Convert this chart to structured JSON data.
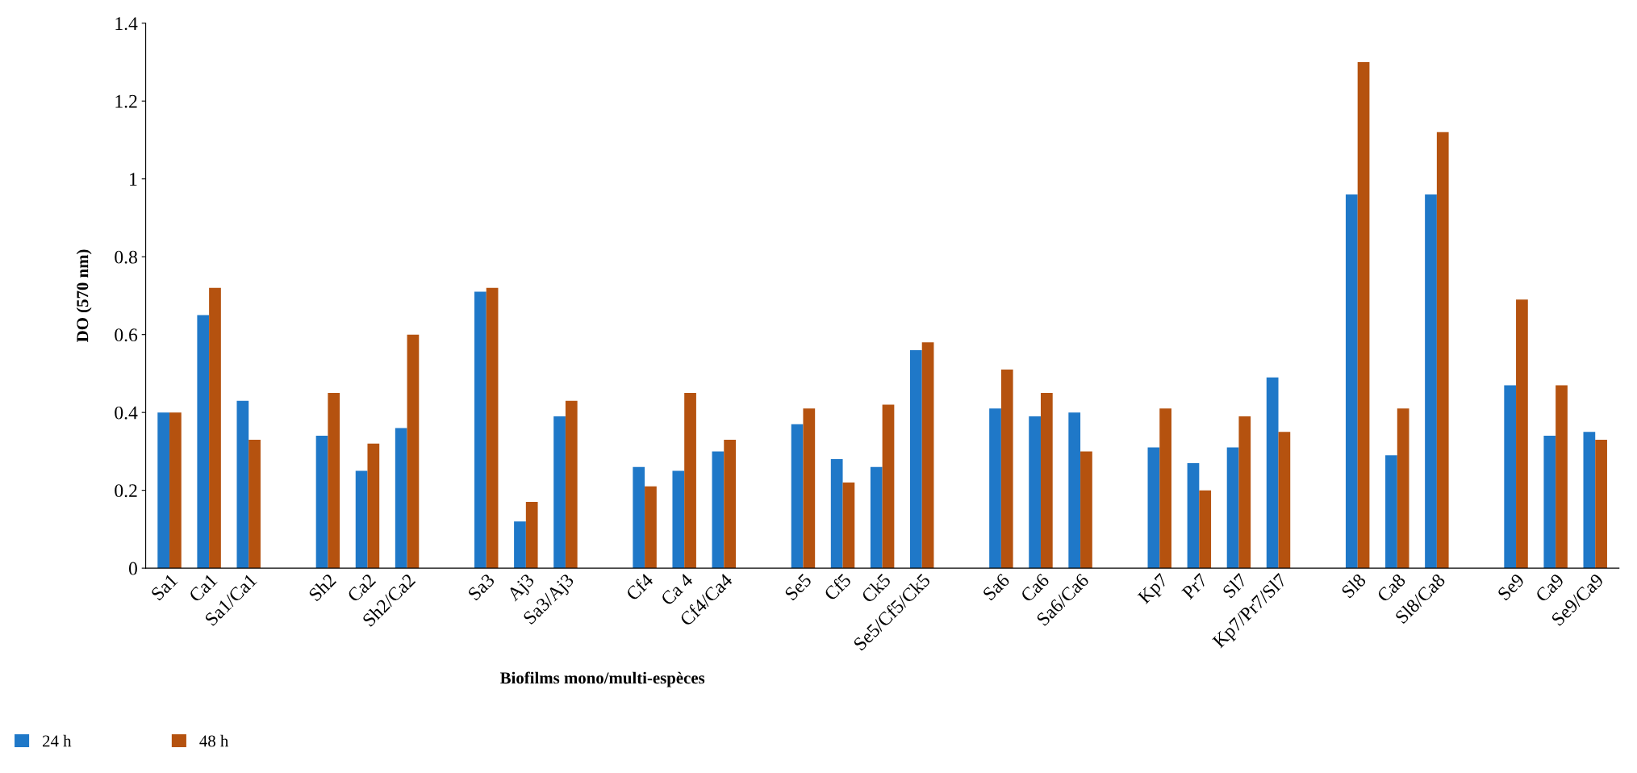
{
  "chart_data": {
    "type": "bar",
    "xlabel": "Biofilms mono/multi-espèces",
    "ylabel": "DO (570 nm)",
    "categories": [
      "Sa1",
      "Ca1",
      "Sa1/Ca1",
      null,
      "Sh2",
      "Ca2",
      "Sh2/Ca2",
      null,
      "Sa3",
      "Aj3",
      "Sa3/Aj3",
      null,
      "Cf4",
      "Ca 4",
      "Cf4/Ca4",
      null,
      "Se5",
      "Cf5",
      "Ck5",
      "Se5/Cf5/Ck5",
      null,
      "Sa6",
      "Ca6",
      "Sa6/Ca6",
      null,
      "Kp7",
      "Pr7",
      "Sl7",
      "Kp7/Pr7/Sl7",
      null,
      "Sl8",
      "Ca8",
      "Sl8/Ca8",
      null,
      "Se9",
      "Ca9",
      "Se9/Ca9"
    ],
    "series": [
      {
        "name": "24 h",
        "color": "#1f78c8",
        "values": [
          0.4,
          0.65,
          0.43,
          null,
          0.34,
          0.25,
          0.36,
          null,
          0.71,
          0.12,
          0.39,
          null,
          0.26,
          0.25,
          0.3,
          null,
          0.37,
          0.28,
          0.26,
          0.56,
          null,
          0.41,
          0.39,
          0.4,
          null,
          0.31,
          0.27,
          0.31,
          0.49,
          null,
          0.96,
          0.29,
          0.96,
          null,
          0.47,
          0.34,
          0.35
        ]
      },
      {
        "name": "48 h",
        "color": "#b5520f",
        "values": [
          0.4,
          0.72,
          0.33,
          null,
          0.45,
          0.32,
          0.6,
          null,
          0.72,
          0.17,
          0.43,
          null,
          0.21,
          0.45,
          0.33,
          null,
          0.41,
          0.22,
          0.42,
          0.58,
          null,
          0.51,
          0.45,
          0.3,
          null,
          0.41,
          0.2,
          0.39,
          0.35,
          null,
          1.3,
          0.41,
          1.12,
          null,
          0.69,
          0.47,
          0.33
        ]
      }
    ],
    "ylim": [
      0,
      1.4
    ],
    "yticks": [
      0,
      {
        "value": 0.2,
        "label": "0.2"
      },
      {
        "value": 0.4,
        "label": "0.4"
      },
      {
        "value": 0.6,
        "label": "0.6"
      },
      {
        "value": 0.8,
        "label": "0.8"
      },
      1,
      {
        "value": 1.2,
        "label": "1.2"
      },
      {
        "value": 1.4,
        "label": "1.4"
      }
    ],
    "grid": false,
    "legend": "bottom"
  }
}
